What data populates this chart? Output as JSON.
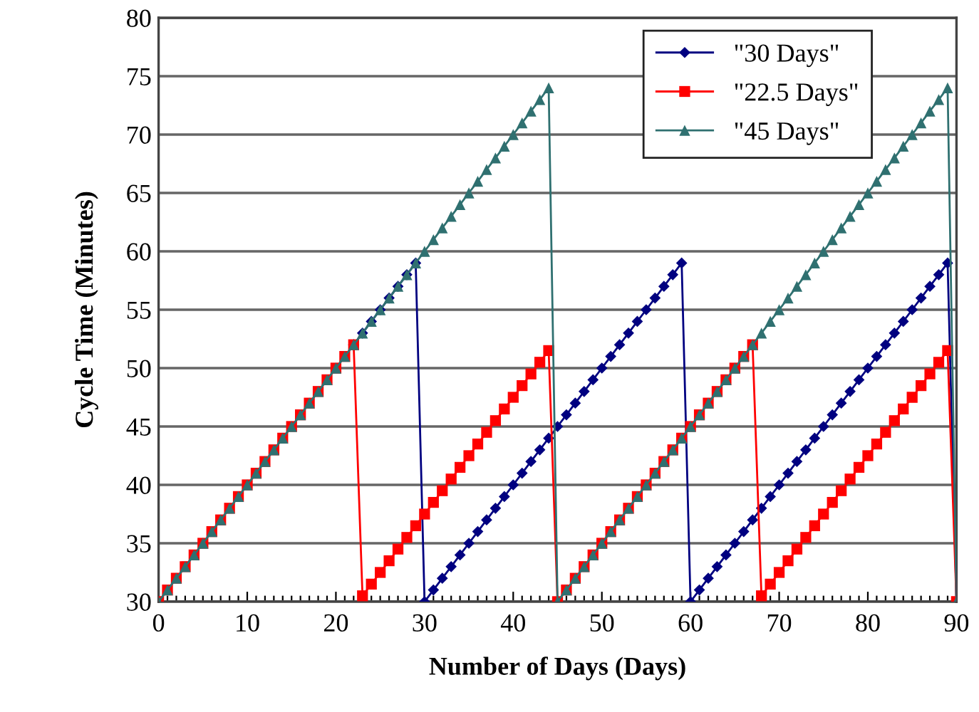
{
  "chart_data": {
    "type": "line",
    "xlabel": "Number of Days (Days)",
    "ylabel": "Cycle Time (Minutes)",
    "x": [
      0,
      1,
      2,
      3,
      4,
      5,
      6,
      7,
      8,
      9,
      10,
      11,
      12,
      13,
      14,
      15,
      16,
      17,
      18,
      19,
      20,
      21,
      22,
      23,
      24,
      25,
      26,
      27,
      28,
      29,
      30,
      31,
      32,
      33,
      34,
      35,
      36,
      37,
      38,
      39,
      40,
      41,
      42,
      43,
      44,
      45,
      46,
      47,
      48,
      49,
      50,
      51,
      52,
      53,
      54,
      55,
      56,
      57,
      58,
      59,
      60,
      61,
      62,
      63,
      64,
      65,
      66,
      67,
      68,
      69,
      70,
      71,
      72,
      73,
      74,
      75,
      76,
      77,
      78,
      79,
      80,
      81,
      82,
      83,
      84,
      85,
      86,
      87,
      88,
      89,
      90
    ],
    "series": [
      {
        "name": "\"30 Days\"",
        "color": "#000080",
        "marker": "diamond",
        "values": [
          null,
          null,
          null,
          null,
          null,
          null,
          null,
          null,
          null,
          null,
          null,
          null,
          null,
          null,
          null,
          null,
          null,
          null,
          null,
          null,
          null,
          null,
          52,
          53,
          54,
          55,
          56,
          57,
          58,
          59,
          30,
          31,
          32,
          33,
          34,
          35,
          36,
          37,
          38,
          39,
          40,
          41,
          42,
          43,
          44,
          45,
          46,
          47,
          48,
          49,
          50,
          51,
          52,
          53,
          54,
          55,
          56,
          57,
          58,
          59,
          30,
          31,
          32,
          33,
          34,
          35,
          36,
          37,
          38,
          39,
          40,
          41,
          42,
          43,
          44,
          45,
          46,
          47,
          48,
          49,
          50,
          51,
          52,
          53,
          54,
          55,
          56,
          57,
          58,
          59,
          30
        ]
      },
      {
        "name": "\"22.5 Days\"",
        "color": "#ff0000",
        "marker": "square",
        "values": [
          30,
          31,
          32,
          33,
          34,
          35,
          36,
          37,
          38,
          39,
          40,
          41,
          42,
          43,
          44,
          45,
          46,
          47,
          48,
          49,
          50,
          51,
          52,
          30.5,
          31.5,
          32.5,
          33.5,
          34.5,
          35.5,
          36.5,
          37.5,
          38.5,
          39.5,
          40.5,
          41.5,
          42.5,
          43.5,
          44.5,
          45.5,
          46.5,
          47.5,
          48.5,
          49.5,
          50.5,
          51.5,
          30,
          31,
          32,
          33,
          34,
          35,
          36,
          37,
          38,
          39,
          40,
          41,
          42,
          43,
          44,
          45,
          46,
          47,
          48,
          49,
          50,
          51,
          52,
          30.5,
          31.5,
          32.5,
          33.5,
          34.5,
          35.5,
          36.5,
          37.5,
          38.5,
          39.5,
          40.5,
          41.5,
          42.5,
          43.5,
          44.5,
          45.5,
          46.5,
          47.5,
          48.5,
          49.5,
          50.5,
          51.5,
          30
        ]
      },
      {
        "name": "\"45 Days\"",
        "color": "#2f7070",
        "marker": "triangle",
        "values": [
          30,
          31,
          32,
          33,
          34,
          35,
          36,
          37,
          38,
          39,
          40,
          41,
          42,
          43,
          44,
          45,
          46,
          47,
          48,
          49,
          50,
          51,
          52,
          53,
          54,
          55,
          56,
          57,
          58,
          59,
          60,
          61,
          62,
          63,
          64,
          65,
          66,
          67,
          68,
          69,
          70,
          71,
          72,
          73,
          74,
          30,
          31,
          32,
          33,
          34,
          35,
          36,
          37,
          38,
          39,
          40,
          41,
          42,
          43,
          44,
          45,
          46,
          47,
          48,
          49,
          50,
          51,
          52,
          53,
          54,
          55,
          56,
          57,
          58,
          59,
          60,
          61,
          62,
          63,
          64,
          65,
          66,
          67,
          68,
          69,
          70,
          71,
          72,
          73,
          74,
          30
        ]
      }
    ],
    "xlim": [
      0,
      90
    ],
    "ylim": [
      30,
      80
    ],
    "xticks": [
      0,
      {
        "value": 1,
        "label": null
      },
      {
        "value": 2,
        "label": null
      },
      {
        "value": 3,
        "label": null
      },
      {
        "value": 4,
        "label": null
      },
      {
        "value": 5,
        "label": null
      },
      {
        "value": 6,
        "label": null
      },
      {
        "value": 7,
        "label": null
      },
      {
        "value": 8,
        "label": null
      },
      {
        "value": 9,
        "label": null
      },
      10,
      {
        "value": 11,
        "label": null
      },
      {
        "value": 12,
        "label": null
      },
      {
        "value": 13,
        "label": null
      },
      {
        "value": 14,
        "label": null
      },
      {
        "value": 15,
        "label": null
      },
      {
        "value": 16,
        "label": null
      },
      {
        "value": 17,
        "label": null
      },
      {
        "value": 18,
        "label": null
      },
      {
        "value": 19,
        "label": null
      },
      20,
      {
        "value": 21,
        "label": null
      },
      {
        "value": 22,
        "label": null
      },
      {
        "value": 23,
        "label": null
      },
      {
        "value": 24,
        "label": null
      },
      {
        "value": 25,
        "label": null
      },
      {
        "value": 26,
        "label": null
      },
      {
        "value": 27,
        "label": null
      },
      {
        "value": 28,
        "label": null
      },
      {
        "value": 29,
        "label": null
      },
      30,
      {
        "value": 31,
        "label": null
      },
      {
        "value": 32,
        "label": null
      },
      {
        "value": 33,
        "label": null
      },
      {
        "value": 34,
        "label": null
      },
      {
        "value": 35,
        "label": null
      },
      {
        "value": 36,
        "label": null
      },
      {
        "value": 37,
        "label": null
      },
      {
        "value": 38,
        "label": null
      },
      {
        "value": 39,
        "label": null
      },
      40,
      {
        "value": 41,
        "label": null
      },
      {
        "value": 42,
        "label": null
      },
      {
        "value": 43,
        "label": null
      },
      {
        "value": 44,
        "label": null
      },
      {
        "value": 45,
        "label": null
      },
      {
        "value": 46,
        "label": null
      },
      {
        "value": 47,
        "label": null
      },
      {
        "value": 48,
        "label": null
      },
      {
        "value": 49,
        "label": null
      },
      50,
      {
        "value": 51,
        "label": null
      },
      {
        "value": 52,
        "label": null
      },
      {
        "value": 53,
        "label": null
      },
      {
        "value": 54,
        "label": null
      },
      {
        "value": 55,
        "label": null
      },
      {
        "value": 56,
        "label": null
      },
      {
        "value": 57,
        "label": null
      },
      {
        "value": 58,
        "label": null
      },
      {
        "value": 59,
        "label": null
      },
      60,
      {
        "value": 61,
        "label": null
      },
      {
        "value": 62,
        "label": null
      },
      {
        "value": 63,
        "label": null
      },
      {
        "value": 64,
        "label": null
      },
      {
        "value": 65,
        "label": null
      },
      {
        "value": 66,
        "label": null
      },
      {
        "value": 67,
        "label": null
      },
      {
        "value": 68,
        "label": null
      },
      {
        "value": 69,
        "label": null
      },
      70,
      {
        "value": 71,
        "label": null
      },
      {
        "value": 72,
        "label": null
      },
      {
        "value": 73,
        "label": null
      },
      {
        "value": 74,
        "label": null
      },
      {
        "value": 75,
        "label": null
      },
      {
        "value": 76,
        "label": null
      },
      {
        "value": 77,
        "label": null
      },
      {
        "value": 78,
        "label": null
      },
      {
        "value": 79,
        "label": null
      },
      80,
      {
        "value": 81,
        "label": null
      },
      {
        "value": 82,
        "label": null
      },
      {
        "value": 83,
        "label": null
      },
      {
        "value": 84,
        "label": null
      },
      {
        "value": 85,
        "label": null
      },
      {
        "value": 86,
        "label": null
      },
      {
        "value": 87,
        "label": null
      },
      {
        "value": 88,
        "label": null
      },
      {
        "value": 89,
        "label": null
      },
      90
    ],
    "yticks": [
      30,
      35,
      40,
      45,
      50,
      55,
      60,
      65,
      70,
      75,
      80
    ],
    "grid": "y",
    "legend": "top right",
    "line_style": "solid"
  }
}
